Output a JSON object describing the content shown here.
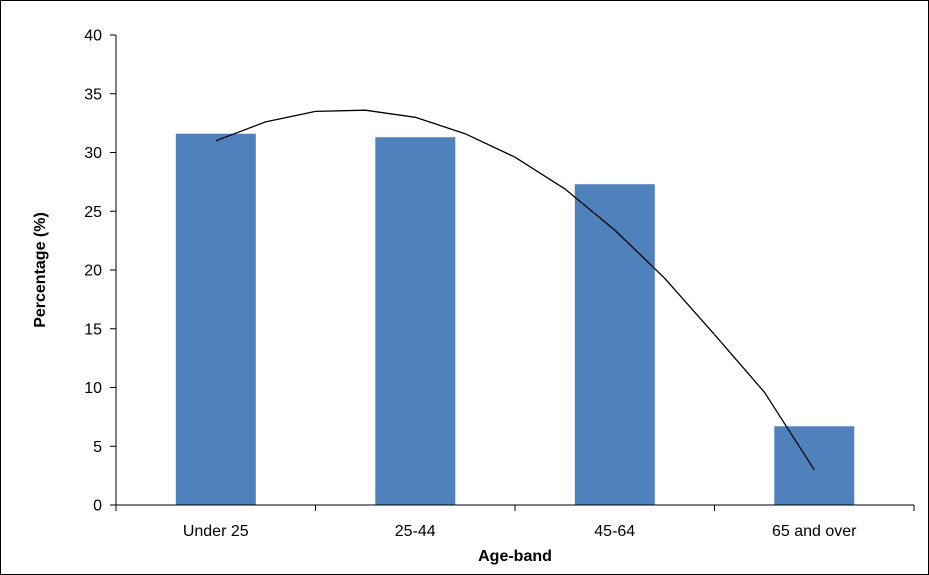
{
  "chart_data": {
    "type": "bar",
    "title": "",
    "xlabel": "Age-band",
    "ylabel": "Percentage (%)",
    "categories": [
      "Under 25",
      "25-44",
      "45-64",
      "65 and over"
    ],
    "values": [
      31.6,
      31.3,
      27.3,
      6.7
    ],
    "ylim": [
      0,
      40
    ],
    "yticks": [
      "0",
      "5",
      "10",
      "15",
      "20",
      "25",
      "30",
      "35",
      "40"
    ],
    "bar_color": "#4F81BD",
    "grid": false,
    "legend": "none",
    "trendline": {
      "type": "polynomial",
      "x": [
        0.0,
        0.25,
        0.5,
        0.75,
        1.0,
        1.25,
        1.5,
        1.75,
        2.0,
        2.25,
        2.5,
        2.75,
        3.0
      ],
      "y": [
        31.0,
        32.6,
        33.5,
        33.6,
        33.0,
        31.6,
        29.6,
        26.9,
        23.4,
        19.3,
        14.5,
        9.6,
        3.0
      ]
    }
  }
}
